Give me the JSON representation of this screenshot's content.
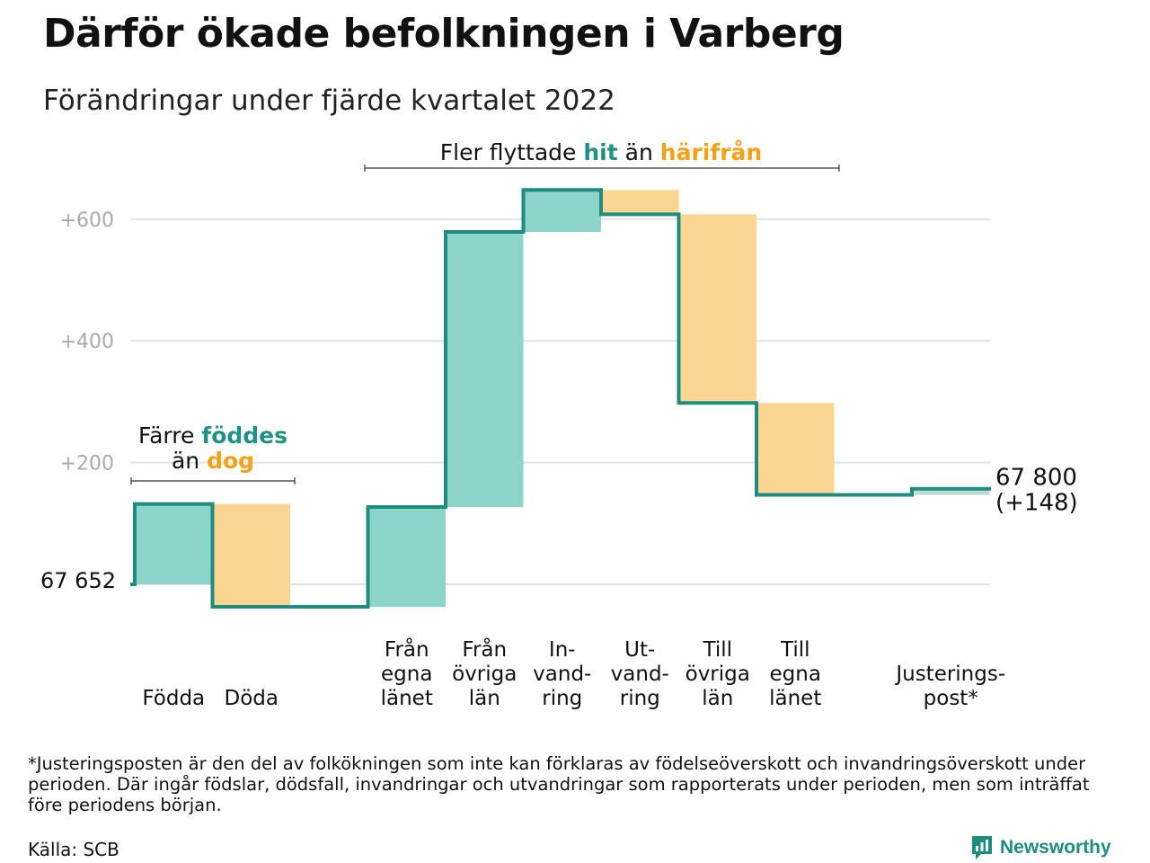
{
  "title": "Därför ökade befolkningen i Varberg",
  "subtitle": "Förändringar under fjärde kvartalet 2022",
  "annotations": {
    "births_deaths": {
      "line1_a": "Färre ",
      "line1_b": "föddes",
      "line2_a": "än ",
      "line2_b": "dog"
    },
    "migration": {
      "part_a": "Fler flyttade ",
      "part_b": "hit",
      "part_c": " än ",
      "part_d": "härifrån"
    }
  },
  "chart_data": {
    "type": "waterfall",
    "start_value": 67652,
    "start_label": "67 652",
    "end_label_line1": "67 800",
    "end_label_line2": "(+148)",
    "y_ticks": [
      {
        "value": 200,
        "label": "+200"
      },
      {
        "value": 400,
        "label": "+400"
      },
      {
        "value": 600,
        "label": "+600"
      }
    ],
    "ylim": [
      -40,
      700
    ],
    "grid": true,
    "items": [
      {
        "label_lines": [
          "Födda"
        ],
        "change": 132,
        "kind": "increase"
      },
      {
        "label_lines": [
          "Döda"
        ],
        "change": -169,
        "kind": "decrease"
      },
      {
        "label_lines": [],
        "change": 0,
        "kind": "gap"
      },
      {
        "label_lines": [
          "Från",
          "egna",
          "länet"
        ],
        "change": 164,
        "kind": "increase"
      },
      {
        "label_lines": [
          "Från",
          "övriga",
          "län"
        ],
        "change": 452,
        "kind": "increase"
      },
      {
        "label_lines": [
          "In-",
          "vand-",
          "ring"
        ],
        "change": 69,
        "kind": "increase"
      },
      {
        "label_lines": [
          "Ut-",
          "vand-",
          "ring"
        ],
        "change": -40,
        "kind": "decrease"
      },
      {
        "label_lines": [
          "Till",
          "övriga",
          "län"
        ],
        "change": -310,
        "kind": "decrease"
      },
      {
        "label_lines": [
          "Till",
          "egna",
          "länet"
        ],
        "change": -151,
        "kind": "decrease"
      },
      {
        "label_lines": [],
        "change": 0,
        "kind": "gap"
      },
      {
        "label_lines": [
          "Justerings-",
          "post*"
        ],
        "change": 10,
        "kind": "adjustment"
      }
    ]
  },
  "colors": {
    "increase": "#8dd5cb",
    "decrease": "#fad692",
    "adjustment": "#b9ddd6",
    "line": "#1e8c7e",
    "teal_text": "#1e9384",
    "orange_text": "#f2a118",
    "grid": "#e3e3e3",
    "tick_text": "#aaaaaa"
  },
  "footnote": "*Justeringsposten är den del av folkökningen som inte kan förklaras av födelseöverskott och invandringsöverskott under perioden. Där ingår födslar, dödsfall, invandringar och utvandringar som rapporterats under perioden, men som inträffat före periodens början.",
  "source": "Källa: SCB",
  "brand": "Newsworthy",
  "brand_icon": "newsworthy-logo-icon"
}
